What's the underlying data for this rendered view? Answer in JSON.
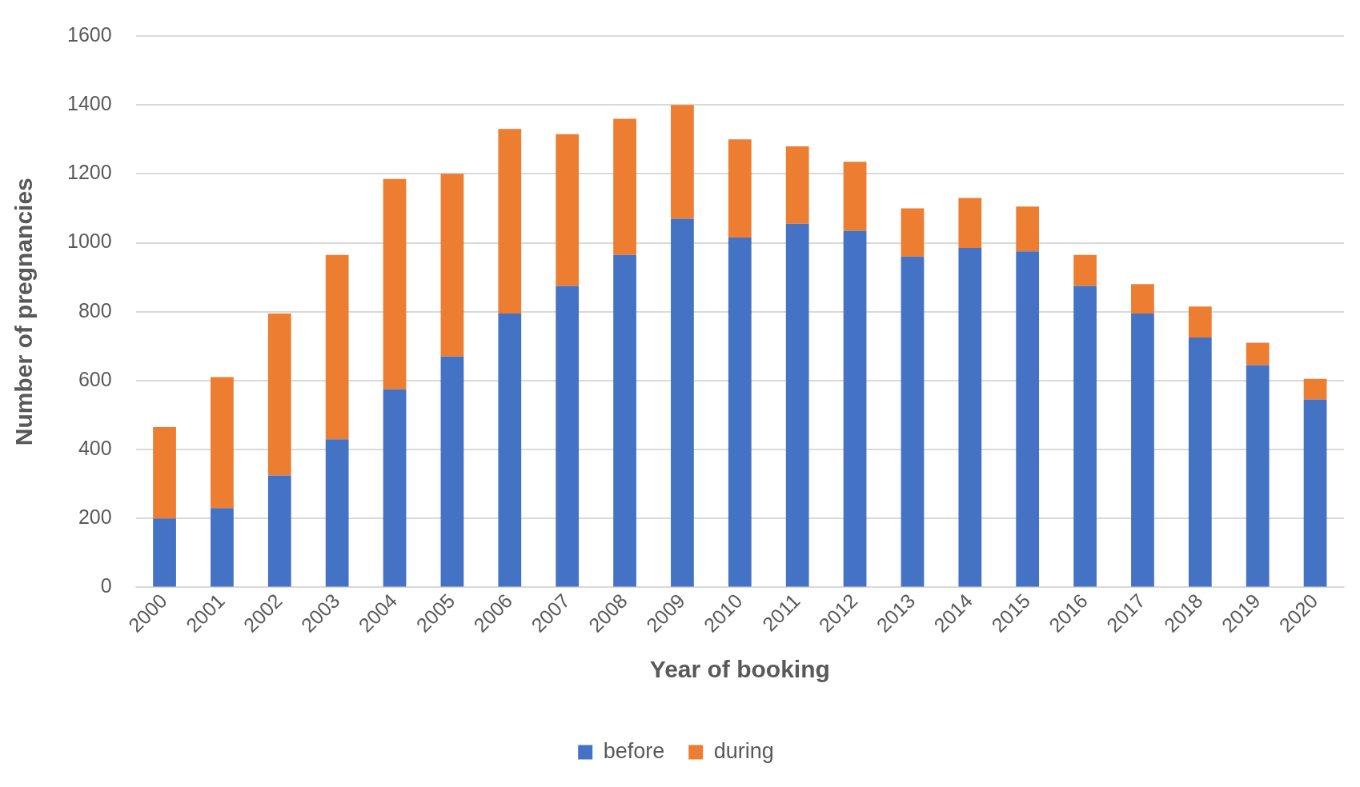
{
  "chart_data": {
    "type": "bar",
    "stacked": true,
    "xlabel": "Year of booking",
    "ylabel": "Number of pregnancies",
    "categories": [
      "2000",
      "2001",
      "2002",
      "2003",
      "2004",
      "2005",
      "2006",
      "2007",
      "2008",
      "2009",
      "2010",
      "2011",
      "2012",
      "2013",
      "2014",
      "2015",
      "2016",
      "2017",
      "2018",
      "2019",
      "2020"
    ],
    "series": [
      {
        "name": "before",
        "color": "#4472c4",
        "values": [
          200,
          230,
          325,
          430,
          575,
          670,
          795,
          875,
          965,
          1070,
          1015,
          1055,
          1035,
          960,
          985,
          975,
          875,
          795,
          725,
          645,
          545
        ]
      },
      {
        "name": "during",
        "color": "#ed7d31",
        "values": [
          265,
          380,
          470,
          535,
          610,
          530,
          535,
          440,
          395,
          330,
          285,
          225,
          200,
          140,
          145,
          130,
          90,
          85,
          90,
          65,
          60
        ]
      }
    ],
    "ylim": [
      0,
      1600
    ],
    "yticks": [
      0,
      200,
      400,
      600,
      800,
      1000,
      1200,
      1400,
      1600
    ],
    "grid": "y",
    "legend": "bottom"
  }
}
